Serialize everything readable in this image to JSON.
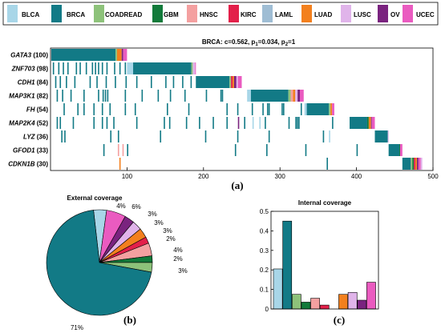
{
  "colors": {
    "BLCA": "#a8d6e8",
    "BRCA": "#127a86",
    "COADREAD": "#8dc27a",
    "GBM": "#127a3a",
    "HNSC": "#f4a0a0",
    "KIRC": "#e3204a",
    "LAML": "#9fbdd4",
    "LUAD": "#f3801e",
    "LUSC": "#e0b4ea",
    "OV": "#7a237f",
    "UCEC": "#ea5bc0"
  },
  "legend": [
    "BLCA",
    "BRCA",
    "COADREAD",
    "GBM",
    "HNSC",
    "KIRC",
    "LAML",
    "LUAD",
    "LUSC",
    "OV",
    "UCEC"
  ],
  "panel_a": {
    "label": "(a)",
    "stats": {
      "prefix": "BRCA: c=0.562,  p",
      "sub1": "1",
      "mid": "=0.034,  p",
      "sub2": "2",
      "suffix": "=1"
    }
  },
  "panel_b": {
    "label": "(b)"
  },
  "panel_c": {
    "label": "(c)"
  },
  "chart_data": [
    {
      "type": "heatmap",
      "panel": "(a)",
      "title": "BRCA: c=0.562, p1=0.034, p2=1",
      "xlim": [
        0,
        500
      ],
      "xticks": [
        100,
        200,
        300,
        400,
        500
      ],
      "genes": [
        {
          "name": "GATA3",
          "count": "(100)"
        },
        {
          "name": "ZNF703",
          "count": "(98)"
        },
        {
          "name": "CDH1",
          "count": "(84)"
        },
        {
          "name": "MAP3K1",
          "count": "(82)"
        },
        {
          "name": "FH",
          "count": "(54)"
        },
        {
          "name": "MAP2K4",
          "count": "(52)"
        },
        {
          "name": "LYZ",
          "count": "(36)"
        },
        {
          "name": "GFOD1",
          "count": "(33)"
        },
        {
          "name": "CDKN1B",
          "count": "(30)"
        }
      ],
      "blocks": [
        {
          "row": 0,
          "start": 1,
          "end": 85,
          "cancer": "BRCA"
        },
        {
          "row": 0,
          "start": 85,
          "end": 87,
          "cancer": "COADREAD"
        },
        {
          "row": 0,
          "start": 87,
          "end": 93,
          "cancer": "LUAD"
        },
        {
          "row": 0,
          "start": 93,
          "end": 95,
          "cancer": "OV"
        },
        {
          "row": 0,
          "start": 95,
          "end": 100,
          "cancer": "UCEC"
        },
        {
          "row": 1,
          "start": 100,
          "end": 108,
          "cancer": "BLCA"
        },
        {
          "row": 1,
          "start": 108,
          "end": 184,
          "cancer": "BRCA"
        },
        {
          "row": 1,
          "start": 184,
          "end": 186,
          "cancer": "COADREAD"
        },
        {
          "row": 1,
          "start": 186,
          "end": 189,
          "cancer": "LUSC"
        },
        {
          "row": 1,
          "start": 189,
          "end": 190,
          "cancer": "UCEC"
        },
        {
          "row": 2,
          "start": 190,
          "end": 234,
          "cancer": "BRCA"
        },
        {
          "row": 2,
          "start": 234,
          "end": 236,
          "cancer": "COADREAD"
        },
        {
          "row": 2,
          "start": 236,
          "end": 238,
          "cancer": "KIRC"
        },
        {
          "row": 2,
          "start": 238,
          "end": 240,
          "cancer": "LUAD"
        },
        {
          "row": 2,
          "start": 240,
          "end": 243,
          "cancer": "OV"
        },
        {
          "row": 2,
          "start": 243,
          "end": 245,
          "cancer": "LUSC"
        },
        {
          "row": 2,
          "start": 245,
          "end": 250,
          "cancer": "UCEC"
        },
        {
          "row": 3,
          "start": 257,
          "end": 262,
          "cancer": "BLCA"
        },
        {
          "row": 3,
          "start": 262,
          "end": 311,
          "cancer": "BRCA"
        },
        {
          "row": 3,
          "start": 311,
          "end": 314,
          "cancer": "COADREAD"
        },
        {
          "row": 3,
          "start": 314,
          "end": 317,
          "cancer": "HNSC"
        },
        {
          "row": 3,
          "start": 317,
          "end": 320,
          "cancer": "LUAD"
        },
        {
          "row": 3,
          "start": 320,
          "end": 323,
          "cancer": "LUSC"
        },
        {
          "row": 3,
          "start": 323,
          "end": 326,
          "cancer": "OV"
        },
        {
          "row": 3,
          "start": 326,
          "end": 331,
          "cancer": "UCEC"
        },
        {
          "row": 4,
          "start": 332,
          "end": 335,
          "cancer": "BLCA"
        },
        {
          "row": 4,
          "start": 335,
          "end": 364,
          "cancer": "BRCA"
        },
        {
          "row": 4,
          "start": 364,
          "end": 366,
          "cancer": "COADREAD"
        },
        {
          "row": 4,
          "start": 366,
          "end": 368,
          "cancer": "LUAD"
        },
        {
          "row": 4,
          "start": 368,
          "end": 371,
          "cancer": "UCEC"
        },
        {
          "row": 5,
          "start": 391,
          "end": 414,
          "cancer": "BRCA"
        },
        {
          "row": 5,
          "start": 414,
          "end": 416,
          "cancer": "GBM"
        },
        {
          "row": 5,
          "start": 416,
          "end": 419,
          "cancer": "LUAD"
        },
        {
          "row": 5,
          "start": 419,
          "end": 420,
          "cancer": "OV"
        },
        {
          "row": 5,
          "start": 420,
          "end": 424,
          "cancer": "UCEC"
        },
        {
          "row": 6,
          "start": 424,
          "end": 441,
          "cancer": "BRCA"
        },
        {
          "row": 6,
          "start": 441,
          "end": 442,
          "cancer": "LUSC"
        },
        {
          "row": 7,
          "start": 442,
          "end": 456,
          "cancer": "BRCA"
        },
        {
          "row": 7,
          "start": 456,
          "end": 457,
          "cancer": "GBM"
        },
        {
          "row": 7,
          "start": 457,
          "end": 460,
          "cancer": "UCEC"
        },
        {
          "row": 8,
          "start": 460,
          "end": 471,
          "cancer": "BRCA"
        },
        {
          "row": 8,
          "start": 471,
          "end": 473,
          "cancer": "COADREAD"
        },
        {
          "row": 8,
          "start": 473,
          "end": 475,
          "cancer": "GBM"
        },
        {
          "row": 8,
          "start": 475,
          "end": 477,
          "cancer": "KIRC"
        },
        {
          "row": 8,
          "start": 477,
          "end": 479,
          "cancer": "LUAD"
        },
        {
          "row": 8,
          "start": 479,
          "end": 481,
          "cancer": "OV"
        },
        {
          "row": 8,
          "start": 481,
          "end": 484,
          "cancer": "UCEC"
        },
        {
          "row": 8,
          "start": 484,
          "end": 486,
          "cancer": "LUSC"
        }
      ],
      "ticks": [
        {
          "row": 1,
          "cancer": "BRCA",
          "x": [
            3,
            10,
            16,
            22,
            33,
            38,
            46,
            54,
            58,
            62,
            67,
            73,
            83,
            90,
            97
          ]
        },
        {
          "row": 2,
          "cancer": "BRCA",
          "x": [
            6,
            12,
            20,
            31,
            51,
            60,
            72,
            84,
            98,
            112,
            131,
            150,
            160,
            172,
            183
          ]
        },
        {
          "row": 3,
          "cancer": "BRCA",
          "x": [
            8,
            15,
            26,
            43,
            62,
            68,
            71,
            74,
            97,
            119,
            140,
            156,
            175,
            203,
            222,
            224
          ]
        },
        {
          "row": 4,
          "cancer": "BRCA",
          "x": [
            17,
            35,
            43,
            56,
            67,
            77,
            97,
            110,
            152,
            180,
            230,
            244,
            263,
            277,
            283,
            285,
            302,
            304,
            327
          ]
        },
        {
          "row": 5,
          "cancer": "BRCA",
          "x": [
            8,
            12,
            29,
            56,
            67,
            73,
            82,
            112,
            148,
            155,
            177,
            194,
            212,
            230,
            253,
            280,
            311,
            320,
            322,
            324,
            368
          ]
        },
        {
          "row": 5,
          "cancer": "OV",
          "x": [
            245
          ]
        },
        {
          "row": 5,
          "cancer": "BLCA",
          "x": [
            264,
            273
          ]
        },
        {
          "row": 6,
          "cancer": "BRCA",
          "x": [
            14,
            18,
            78,
            88,
            143,
            202,
            244,
            285,
            356
          ]
        },
        {
          "row": 6,
          "cancer": "BLCA",
          "x": [
            364
          ]
        },
        {
          "row": 7,
          "cancer": "BRCA",
          "x": [
            69,
            100,
            241,
            282,
            333,
            400
          ]
        },
        {
          "row": 7,
          "cancer": "HNSC",
          "x": [
            88,
            94
          ]
        },
        {
          "row": 8,
          "cancer": "LUAD",
          "x": [
            90
          ]
        },
        {
          "row": 8,
          "cancer": "BRCA",
          "x": [
            361
          ]
        }
      ]
    },
    {
      "type": "pie",
      "panel": "(b)",
      "title": "External coverage",
      "slices": [
        {
          "label": "BLCA",
          "value": 4,
          "text": "4%"
        },
        {
          "label": "UCEC",
          "value": 6,
          "text": "6%"
        },
        {
          "label": "OV",
          "value": 3,
          "text": "3%"
        },
        {
          "label": "LUSC",
          "value": 3,
          "text": "3%"
        },
        {
          "label": "LUAD",
          "value": 3,
          "text": "3%"
        },
        {
          "label": "KIRC",
          "value": 2,
          "text": "2%"
        },
        {
          "label": "HNSC",
          "value": 4,
          "text": "4%"
        },
        {
          "label": "GBM",
          "value": 2,
          "text": "2%"
        },
        {
          "label": "COADREAD",
          "value": 3,
          "text": "3%"
        },
        {
          "label": "BRCA",
          "value": 71,
          "text": "71%"
        }
      ]
    },
    {
      "type": "bar",
      "panel": "(c)",
      "title": "Internal coverage",
      "ylim": [
        0,
        0.5
      ],
      "yticks": [
        0,
        0.1,
        0.2,
        0.3,
        0.4,
        0.5
      ],
      "categories": [
        "BLCA",
        "BRCA",
        "COADREAD",
        "GBM",
        "HNSC",
        "KIRC",
        "LAML",
        "LUAD",
        "LUSC",
        "OV",
        "UCEC"
      ],
      "values": [
        0.205,
        0.45,
        0.075,
        0.035,
        0.055,
        0.02,
        0.0,
        0.075,
        0.085,
        0.045,
        0.137
      ]
    }
  ]
}
